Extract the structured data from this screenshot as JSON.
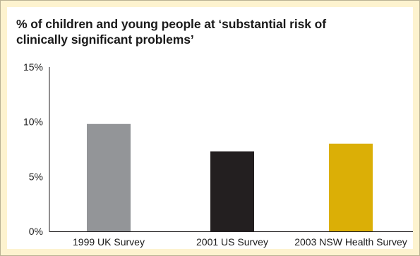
{
  "chart_data": {
    "type": "bar",
    "title_lines": [
      "% of children and young people at ‘substantial risk of",
      "clinically significant problems’"
    ],
    "categories": [
      "1999 UK Survey",
      "2001 US Survey",
      "2003 NSW Health Survey"
    ],
    "values": [
      9.8,
      7.3,
      8.0
    ],
    "colors": [
      "#939598",
      "#231f20",
      "#dbaf06"
    ],
    "ylim": [
      0,
      15
    ],
    "yticks": [
      0,
      5,
      10,
      15
    ],
    "ytick_labels": [
      "0%",
      "5%",
      "10%",
      "15%"
    ],
    "xlabel": "",
    "ylabel": "",
    "grid": false,
    "legend": "none"
  },
  "theme": {
    "frame_background": "#fdf3cf",
    "panel_background": "#ffffff",
    "axis_color": "#231f20"
  }
}
